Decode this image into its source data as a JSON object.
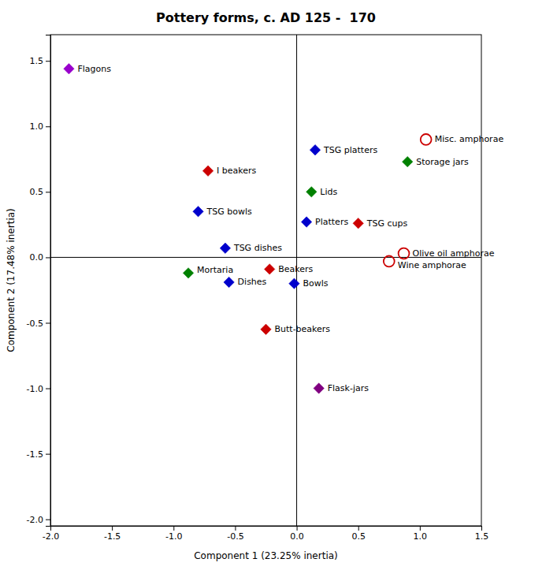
{
  "chart_data": {
    "type": "scatter",
    "title": "Pottery forms, c. AD 125 -  170",
    "xlabel": "Component 1 (23.25% inertia)",
    "ylabel": "Component 2 (17.48% inertia)",
    "xlim": [
      -2.0,
      1.5
    ],
    "ylim": [
      -2.05,
      1.7
    ],
    "xticks": [
      {
        "value": -2.0,
        "label": "-2.0"
      },
      -1.5,
      {
        "value": -1.0,
        "label": "-1.0"
      },
      -0.5,
      {
        "value": 0.0,
        "label": "0.0"
      },
      0.5,
      {
        "value": 1.0,
        "label": "1.0"
      },
      1.5
    ],
    "yticks": [
      {
        "value": -2.0,
        "label": "-2.0"
      },
      -1.5,
      {
        "value": -1.0,
        "label": "-1.0"
      },
      -0.5,
      {
        "value": 0.0,
        "label": "0.0"
      },
      0.5,
      {
        "value": 1.0,
        "label": "1.0"
      },
      1.5
    ],
    "series": [
      {
        "marker": "diamond",
        "labels": [
          "Flagons",
          "I beakers",
          "TSG bowls",
          "TSG dishes",
          "Mortaria",
          "Dishes",
          "Beakers",
          "Bowls",
          "Butt-beakers",
          "Flask-jars",
          "TSG platters",
          "Lids",
          "Platters",
          "TSG cups",
          "Storage jars"
        ],
        "x": [
          -1.85,
          -0.72,
          -0.8,
          -0.58,
          -0.88,
          -0.55,
          -0.22,
          -0.02,
          -0.25,
          0.18,
          0.15,
          0.12,
          0.08,
          0.5,
          0.9
        ],
        "values": [
          1.44,
          0.66,
          0.35,
          0.07,
          -0.12,
          -0.19,
          -0.09,
          -0.2,
          -0.55,
          -1.0,
          0.82,
          0.5,
          0.27,
          0.26,
          0.73
        ],
        "colors": [
          "#9900cc",
          "#cc0000",
          "#0000cc",
          "#0000cc",
          "#008000",
          "#0000cc",
          "#cc0000",
          "#0000cc",
          "#cc0000",
          "#800080",
          "#0000cc",
          "#008000",
          "#0000cc",
          "#cc0000",
          "#008000"
        ]
      },
      {
        "marker": "open-circle",
        "labels": [
          "Misc. amphorae",
          "Wine amphorae",
          "Olive oil amphorae"
        ],
        "x": [
          1.05,
          0.75,
          0.87
        ],
        "values": [
          0.9,
          -0.03,
          0.03
        ],
        "colors": [
          "#cc0000",
          "#cc0000",
          "#cc0000"
        ]
      }
    ]
  }
}
